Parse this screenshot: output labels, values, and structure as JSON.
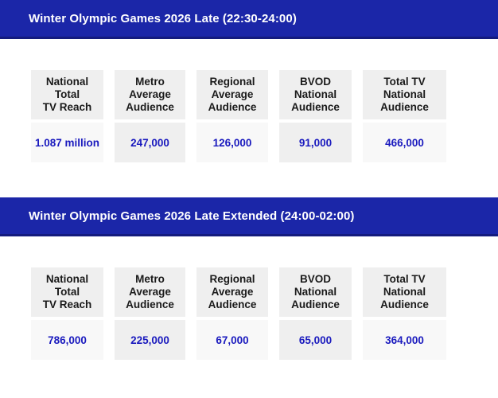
{
  "colors": {
    "bar_background": "#1b26a8",
    "bar_bottom_border": "#141b7e",
    "title_text": "#ffffff",
    "header_cell_background": "#efefef",
    "value_cell_background_odd": "#f8f8f8",
    "value_cell_background_even": "#efefef",
    "header_text": "#1a1a1a",
    "value_text": "#1a1abe"
  },
  "sections": [
    {
      "title": "Winter Olympic Games 2026 Late (22:30-24:00)",
      "columns": [
        "National\nTotal\nTV Reach",
        "Metro\nAverage\nAudience",
        "Regional\nAverage\nAudience",
        "BVOD\nNational\nAudience",
        "Total TV\nNational\nAudience"
      ],
      "values": [
        "1.087 million",
        "247,000",
        "126,000",
        "91,000",
        "466,000"
      ]
    },
    {
      "title": "Winter Olympic Games 2026 Late Extended (24:00-02:00)",
      "columns": [
        "National\nTotal\nTV Reach",
        "Metro\nAverage\nAudience",
        "Regional\nAverage\nAudience",
        "BVOD\nNational\nAudience",
        "Total TV\nNational\nAudience"
      ],
      "values": [
        "786,000",
        "225,000",
        "67,000",
        "65,000",
        "364,000"
      ]
    }
  ]
}
